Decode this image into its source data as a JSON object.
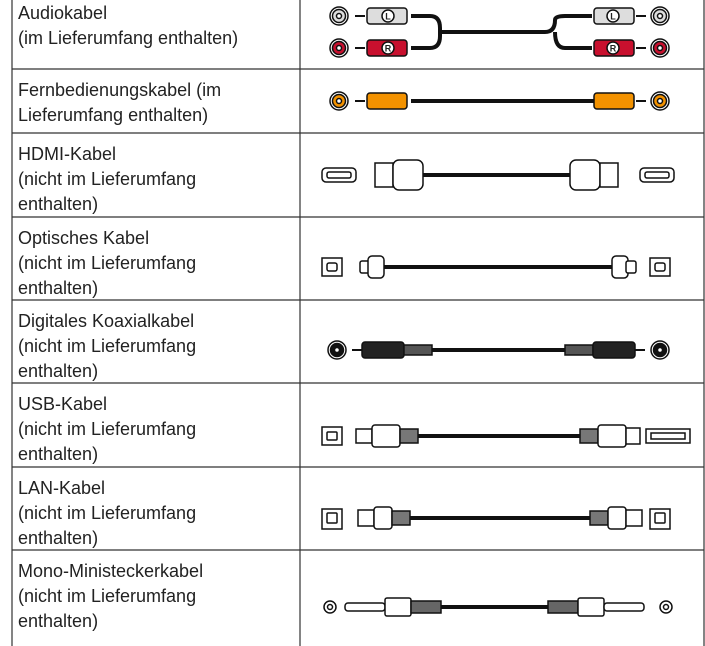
{
  "table": {
    "rows": [
      {
        "lines": [
          "Audiokabel",
          "(im Lieferumfang enthalten)"
        ]
      },
      {
        "lines": [
          "Fernbedienungskabel (im",
          "Lieferumfang enthalten)"
        ]
      },
      {
        "lines": [
          "HDMI-Kabel",
          "(nicht im Lieferumfang",
          "enthalten)"
        ]
      },
      {
        "lines": [
          "Optisches Kabel",
          "(nicht im Lieferumfang",
          "enthalten)"
        ]
      },
      {
        "lines": [
          "Digitales Koaxialkabel",
          "(nicht im Lieferumfang",
          "enthalten)"
        ]
      },
      {
        "lines": [
          "USB-Kabel",
          "(nicht im Lieferumfang",
          "enthalten)"
        ]
      },
      {
        "lines": [
          "LAN-Kabel",
          "(nicht im Lieferumfang",
          "enthalten)"
        ]
      },
      {
        "lines": [
          "Mono-Ministeckerkabel",
          "(nicht im Lieferumfang",
          "enthalten)"
        ]
      }
    ]
  }
}
